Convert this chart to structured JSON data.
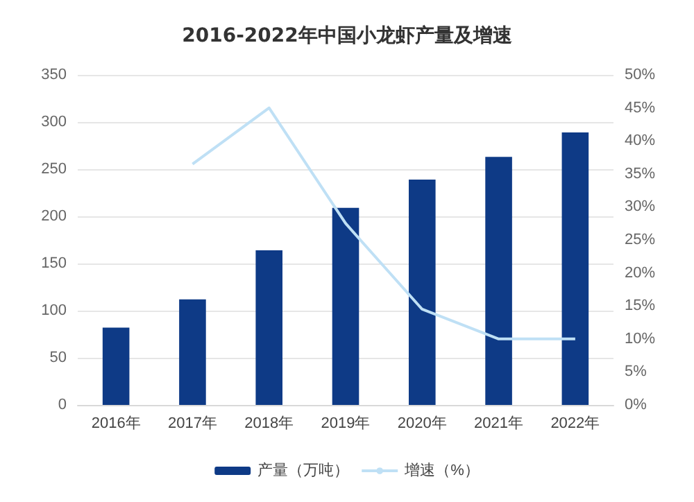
{
  "chart_data": {
    "type": "bar",
    "title": "2016-2022年中国小龙虾产量及增速",
    "categories": [
      "2016年",
      "2017年",
      "2018年",
      "2019年",
      "2020年",
      "2021年",
      "2022年"
    ],
    "series": [
      {
        "name": "产量（万吨）",
        "color": "#0e3a86",
        "values": [
          82,
          112,
          164,
          209,
          239,
          263,
          289
        ]
      },
      {
        "name": "增速（%）",
        "type": "line",
        "axis": "y2",
        "color": "#bfe0f5",
        "values": [
          null,
          36.5,
          45,
          27.5,
          14.5,
          10,
          10
        ]
      }
    ],
    "ylim": [
      0,
      350
    ],
    "yticks": [
      0,
      50,
      100,
      150,
      200,
      250,
      300,
      350
    ],
    "y2lim": [
      0,
      50
    ],
    "y2ticks": [
      {
        "value": 0,
        "label": "0%"
      },
      {
        "value": 5,
        "label": "5%"
      },
      {
        "value": 10,
        "label": "10%"
      },
      {
        "value": 15,
        "label": "15%"
      },
      {
        "value": 20,
        "label": "20%"
      },
      {
        "value": 25,
        "label": "25%"
      },
      {
        "value": 30,
        "label": "30%"
      },
      {
        "value": 35,
        "label": "35%"
      },
      {
        "value": 40,
        "label": "40%"
      },
      {
        "value": 45,
        "label": "45%"
      },
      {
        "value": 50,
        "label": "50%"
      }
    ],
    "grid": "y",
    "legend": "bottom",
    "marker": "none"
  }
}
